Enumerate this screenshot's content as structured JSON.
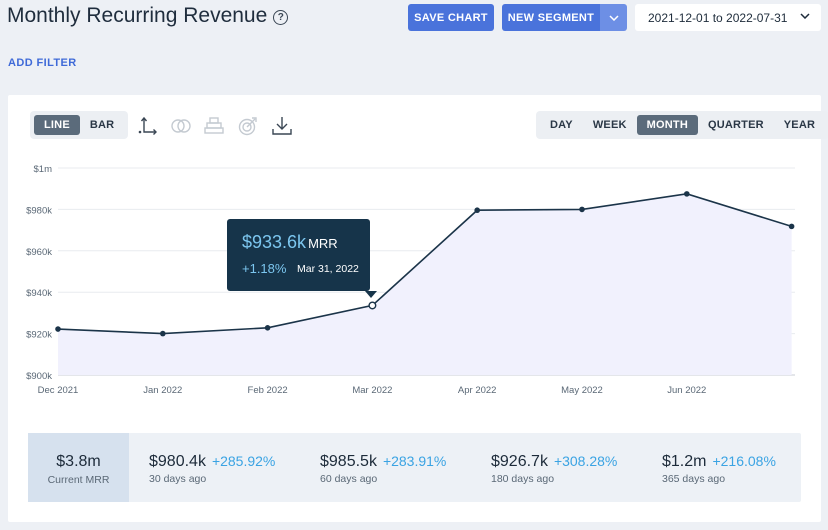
{
  "header": {
    "title": "Monthly Recurring Revenue",
    "help_glyph": "?",
    "save_chart": "SAVE CHART",
    "new_segment": "NEW SEGMENT",
    "date_range": "2021-12-01 to 2022-07-31"
  },
  "filters": {
    "add_filter": "ADD FILTER"
  },
  "chart_controls": {
    "type_options": [
      "LINE",
      "BAR"
    ],
    "type_selected": "LINE",
    "period_options": [
      "DAY",
      "WEEK",
      "MONTH",
      "QUARTER",
      "YEAR"
    ],
    "period_selected": "MONTH",
    "tool_icons": [
      "axis-icon",
      "compare-icon",
      "stack-icon",
      "goal-icon",
      "download-icon"
    ]
  },
  "colors": {
    "primary": "#4a73db",
    "line": "#1b3449",
    "fill": "#f1f1fd",
    "accent": "#3aa3e3",
    "tooltip_bg": "#16344a"
  },
  "chart_data": {
    "type": "area",
    "categories": [
      "Dec 2021",
      "Jan 2022",
      "Feb 2022",
      "Mar 2022",
      "Apr 2022",
      "May 2022",
      "Jun 2022",
      "Jul 2022"
    ],
    "x_tick_labels": [
      "Dec 2021",
      "Jan 2022",
      "Feb 2022",
      "Mar 2022",
      "Apr 2022",
      "May 2022",
      "Jun 2022"
    ],
    "values": [
      922.2,
      920.0,
      922.8,
      933.6,
      979.6,
      980.0,
      987.5,
      971.8
    ],
    "unit": "$k",
    "ylim": [
      900,
      1000
    ],
    "y_ticks": [
      900,
      920,
      940,
      960,
      980,
      1000
    ],
    "y_tick_labels": [
      "$900k",
      "$920k",
      "$940k",
      "$960k",
      "$980k",
      "$1m"
    ],
    "grid": true,
    "highlight_index": 3
  },
  "tooltip": {
    "value": "$933.6k",
    "unit": "MRR",
    "change": "+1.18%",
    "date": "Mar 31, 2022"
  },
  "summary": {
    "current_value": "$3.8m",
    "current_label": "Current MRR",
    "stats": [
      {
        "value": "$980.4k",
        "change": "+285.92%",
        "label": "30 days ago"
      },
      {
        "value": "$985.5k",
        "change": "+283.91%",
        "label": "60 days ago"
      },
      {
        "value": "$926.7k",
        "change": "+308.28%",
        "label": "180 days ago"
      },
      {
        "value": "$1.2m",
        "change": "+216.08%",
        "label": "365 days ago"
      }
    ]
  }
}
